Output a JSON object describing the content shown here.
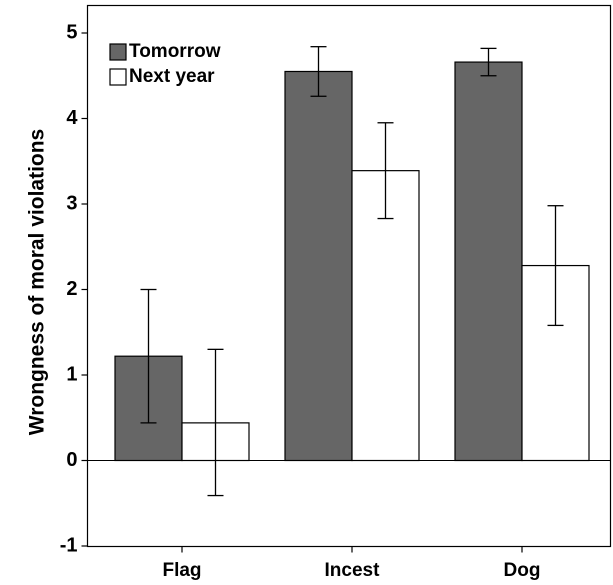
{
  "chart_data": {
    "type": "bar",
    "ylabel": "Wrongness of moral violations",
    "xlabel": "",
    "title": "",
    "categories": [
      "Flag",
      "Incest",
      "Dog"
    ],
    "ylim": [
      -1,
      5.3
    ],
    "yticks": [
      -1,
      0,
      1,
      2,
      3,
      4,
      5
    ],
    "grid": false,
    "legend_position": "top-left",
    "series": [
      {
        "name": "Tomorrow",
        "color": "#666666",
        "values": [
          1.22,
          4.55,
          4.66
        ],
        "err_low": [
          0.44,
          4.26,
          4.5
        ],
        "err_high": [
          2.0,
          4.84,
          4.82
        ]
      },
      {
        "name": "Next year",
        "color": "#ffffff",
        "values": [
          0.44,
          3.39,
          2.28
        ],
        "err_low": [
          -0.41,
          2.83,
          1.58
        ],
        "err_high": [
          1.3,
          3.95,
          2.98
        ]
      }
    ]
  }
}
